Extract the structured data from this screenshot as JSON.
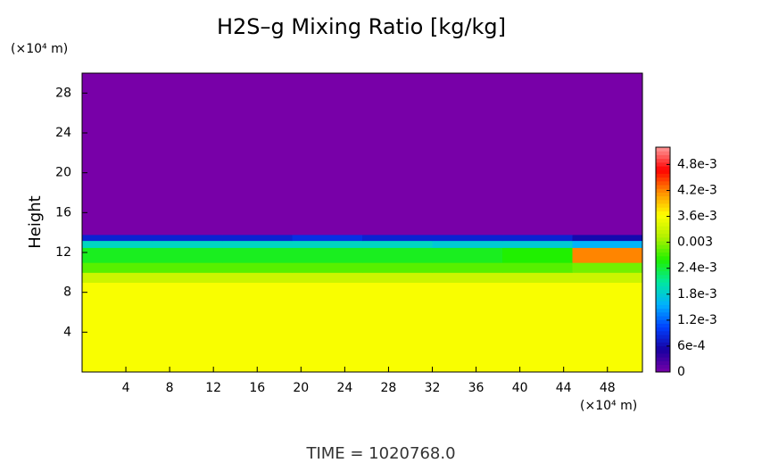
{
  "chart_data": {
    "type": "heatmap",
    "title": "H2S–g Mixing Ratio [kg/kg]",
    "ylabel": "Height",
    "yunit": "(×10⁴ m)",
    "xunit": "(×10⁴ m)",
    "footer": "TIME = 1020768.0",
    "xlim": [
      0,
      51.2
    ],
    "ylim": [
      0,
      30
    ],
    "xticks": [
      4,
      8,
      12,
      16,
      20,
      24,
      28,
      32,
      36,
      40,
      44,
      48
    ],
    "yticks": [
      4,
      8,
      12,
      16,
      20,
      24,
      28
    ],
    "x_edges": [
      0,
      6.4,
      12.8,
      19.2,
      25.6,
      32,
      38.4,
      44.8,
      51.2
    ],
    "y_edges": [
      0,
      9,
      10,
      11,
      12.5,
      13.2,
      13.8,
      30
    ],
    "z": [
      [
        0.0036,
        0.0036,
        0.0036,
        0.0036,
        0.0036,
        0.0036,
        0.0036,
        0.0036
      ],
      [
        0.0033,
        0.0033,
        0.0033,
        0.0033,
        0.0033,
        0.0033,
        0.0033,
        0.0033
      ],
      [
        0.0028,
        0.0028,
        0.0028,
        0.0028,
        0.0028,
        0.0028,
        0.0028,
        0.0029
      ],
      [
        0.0025,
        0.0025,
        0.0025,
        0.0025,
        0.0025,
        0.0025,
        0.0026,
        0.0042
      ],
      [
        0.0019,
        0.0019,
        0.0019,
        0.0019,
        0.0019,
        0.0018,
        0.0018,
        0.0016
      ],
      [
        0.0008,
        0.0008,
        0.0008,
        0.0009,
        0.0008,
        0.0008,
        0.0008,
        0.0006
      ],
      [
        0,
        0,
        0,
        0,
        0,
        0,
        0,
        0
      ]
    ],
    "clim": [
      0,
      0.0052
    ],
    "cticks": [
      {
        "value": 0,
        "label": "0"
      },
      {
        "value": 0.0006,
        "label": "6e-4"
      },
      {
        "value": 0.0012,
        "label": "1.2e-3"
      },
      {
        "value": 0.0018,
        "label": "1.8e-3"
      },
      {
        "value": 0.0024,
        "label": "2.4e-3"
      },
      {
        "value": 0.003,
        "label": "0.003"
      },
      {
        "value": 0.0036,
        "label": "3.6e-3"
      },
      {
        "value": 0.0042,
        "label": "4.2e-3"
      },
      {
        "value": 0.0048,
        "label": "4.8e-3"
      }
    ],
    "colormap": [
      "#7800a8",
      "#1800a0",
      "#0040ff",
      "#00b0ff",
      "#00e8a0",
      "#20f000",
      "#b0f000",
      "#ffff00",
      "#ff9000",
      "#ff0000",
      "#ff9898"
    ]
  }
}
